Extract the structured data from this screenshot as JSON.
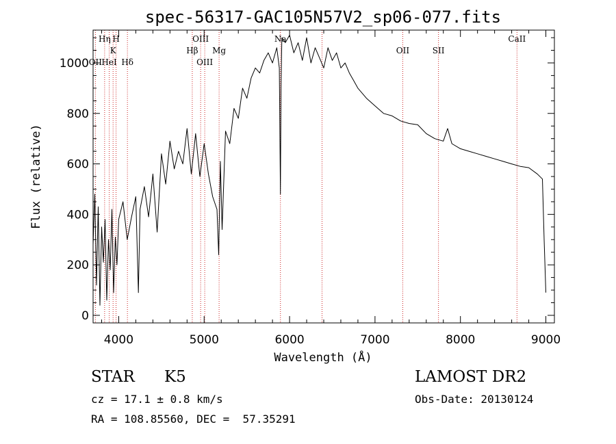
{
  "chart_data": {
    "type": "line",
    "title": "spec-56317-GAC105N57V2_sp06-077.fits",
    "xlabel": "Wavelength (Å)",
    "ylabel": "Flux (relative)",
    "xlim": [
      3700,
      9100
    ],
    "ylim": [
      -30,
      1130
    ],
    "xticks": [
      4000,
      5000,
      6000,
      7000,
      8000,
      9000
    ],
    "xtick_labels": [
      "4000",
      "5000",
      "6000",
      "7000",
      "8000",
      "9000"
    ],
    "yticks": [
      0,
      200,
      400,
      600,
      800,
      1000
    ],
    "ytick_labels": [
      "0",
      "200",
      "400",
      "600",
      "800",
      "1000"
    ],
    "grid": false,
    "series": [
      {
        "name": "",
        "color": "#000000",
        "x": [
          3700,
          3720,
          3740,
          3760,
          3780,
          3800,
          3820,
          3840,
          3860,
          3880,
          3900,
          3920,
          3940,
          3960,
          3980,
          4000,
          4050,
          4100,
          4150,
          4200,
          4230,
          4250,
          4300,
          4350,
          4400,
          4450,
          4500,
          4550,
          4600,
          4650,
          4700,
          4750,
          4800,
          4850,
          4900,
          4950,
          5000,
          5050,
          5100,
          5150,
          5170,
          5190,
          5210,
          5250,
          5300,
          5350,
          5400,
          5450,
          5500,
          5550,
          5600,
          5650,
          5700,
          5750,
          5800,
          5850,
          5880,
          5893,
          5900,
          5910,
          5950,
          6000,
          6050,
          6100,
          6150,
          6200,
          6250,
          6300,
          6350,
          6400,
          6450,
          6500,
          6550,
          6600,
          6650,
          6700,
          6750,
          6800,
          6900,
          7000,
          7100,
          7200,
          7300,
          7400,
          7500,
          7600,
          7700,
          7800,
          7850,
          7900,
          8000,
          8100,
          8200,
          8300,
          8400,
          8500,
          8600,
          8700,
          8800,
          8900,
          8960,
          8980,
          9000
        ],
        "y": [
          280,
          480,
          120,
          430,
          40,
          350,
          210,
          380,
          60,
          300,
          180,
          420,
          90,
          310,
          200,
          380,
          450,
          300,
          390,
          470,
          90,
          420,
          510,
          390,
          560,
          330,
          640,
          520,
          690,
          580,
          650,
          600,
          740,
          560,
          720,
          550,
          680,
          560,
          470,
          420,
          240,
          610,
          340,
          730,
          680,
          820,
          780,
          900,
          860,
          940,
          980,
          960,
          1010,
          1040,
          1000,
          1060,
          980,
          480,
          900,
          1100,
          1080,
          1110,
          1040,
          1080,
          1010,
          1100,
          1000,
          1060,
          1020,
          980,
          1060,
          1010,
          1040,
          980,
          1000,
          960,
          930,
          900,
          860,
          830,
          800,
          790,
          770,
          760,
          755,
          720,
          700,
          690,
          740,
          680,
          660,
          650,
          640,
          630,
          620,
          610,
          600,
          590,
          585,
          560,
          540,
          300,
          90
        ]
      }
    ],
    "lines": [
      {
        "label": "OII",
        "wavelength": 3727,
        "row": 3
      },
      {
        "label": "Hη",
        "wavelength": 3835,
        "row": 1
      },
      {
        "label": "HeI",
        "wavelength": 3889,
        "row": 3
      },
      {
        "label": "K",
        "wavelength": 3934,
        "row": 2
      },
      {
        "label": "H",
        "wavelength": 3969,
        "row": 1
      },
      {
        "label": "Hδ",
        "wavelength": 4102,
        "row": 3
      },
      {
        "label": "Hβ",
        "wavelength": 4861,
        "row": 2
      },
      {
        "label": "OIII",
        "wavelength": 4959,
        "row": 1
      },
      {
        "label": "OIII",
        "wavelength": 5007,
        "row": 3
      },
      {
        "label": "Mg",
        "wavelength": 5175,
        "row": 2
      },
      {
        "label": "Na",
        "wavelength": 5893,
        "row": 1
      },
      {
        "label": "",
        "wavelength": 6380,
        "row": 0
      },
      {
        "label": "OII",
        "wavelength": 7325,
        "row": 2
      },
      {
        "label": "SII",
        "wavelength": 7743,
        "row": 2
      },
      {
        "label": "CaII",
        "wavelength": 8662,
        "row": 1
      }
    ],
    "line_color": "#cc2222"
  },
  "info": {
    "object_class": "STAR",
    "subclass": "K5",
    "survey": "LAMOST DR2",
    "redshift": "cz = 17.1 ± 0.8 km/s",
    "obs_date": "Obs-Date: 20130124",
    "coords": "RA = 108.85560, DEC =  57.35291"
  }
}
